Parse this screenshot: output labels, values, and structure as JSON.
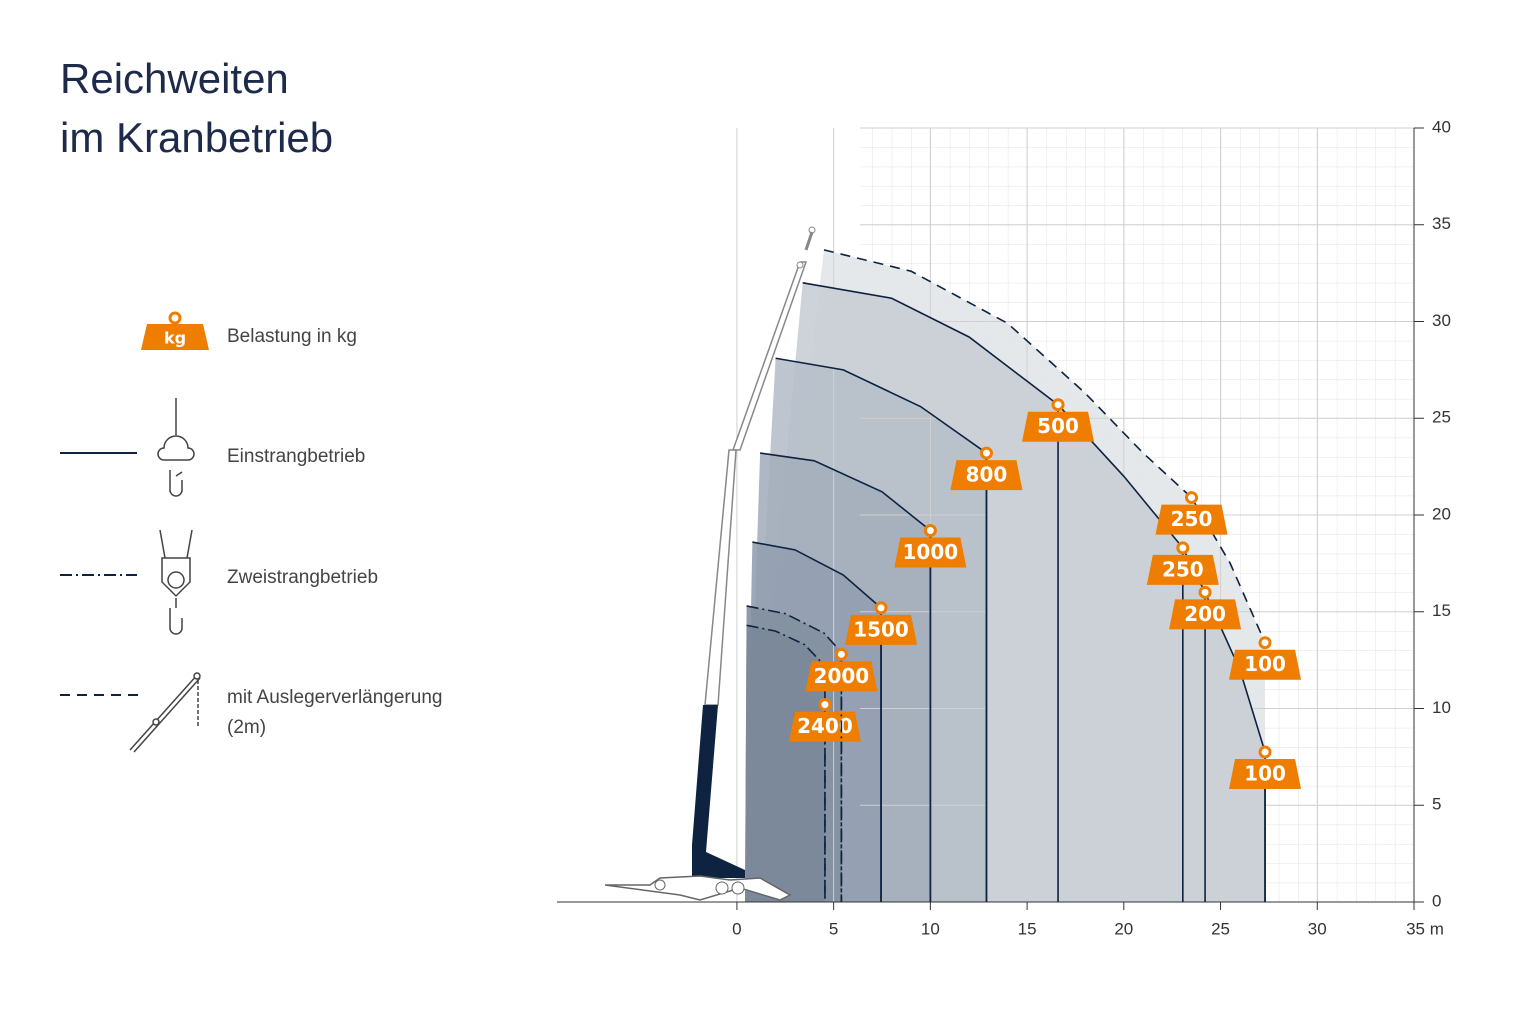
{
  "title": [
    "Reichweiten",
    "im Kranbetrieb"
  ],
  "legend": {
    "load": "Belastung in kg",
    "load_icon": "kg",
    "single": "Einstrangbetrieb",
    "double": "Zweistrangbetrieb",
    "extension": [
      "mit Auslegerverlängerung",
      "(2m)"
    ]
  },
  "chart_data": {
    "type": "load-chart",
    "xlim": [
      -9.3,
      35
    ],
    "ylim": [
      0,
      40
    ],
    "xticks": [
      0,
      5,
      10,
      15,
      20,
      25,
      30,
      {
        "value": 35,
        "label": "35 m"
      }
    ],
    "yticks": [
      0,
      5,
      10,
      15,
      20,
      25,
      30,
      35,
      40
    ],
    "grid": true,
    "curves": [
      {
        "style": "dashed",
        "color": "#0d2340",
        "fill": "#e2e5e9",
        "x": [
          4.5,
          9,
          14,
          18,
          21,
          23.5,
          25.5,
          27.3
        ],
        "y": [
          33.7,
          32.6,
          29.9,
          26.3,
          23.2,
          20.9,
          17.5,
          13.4
        ]
      },
      {
        "style": "solid",
        "color": "#0d2340",
        "fill": "#c9ced6",
        "x": [
          3.4,
          8,
          12,
          16.6,
          20,
          23.05,
          24.2,
          26,
          27.3
        ],
        "y": [
          32.0,
          31.2,
          29.2,
          25.7,
          22.0,
          18.3,
          16.0,
          12,
          7.75
        ]
      },
      {
        "style": "solid",
        "color": "#0d2340",
        "fill": "#b7bfca",
        "x": [
          2,
          5.5,
          9.5,
          12.9
        ],
        "y": [
          28.1,
          27.5,
          25.6,
          23.2
        ]
      },
      {
        "style": "solid",
        "color": "#0d2340",
        "fill": "#a5afbc",
        "x": [
          1.2,
          4,
          7.5,
          10
        ],
        "y": [
          23.2,
          22.8,
          21.2,
          19.2
        ]
      },
      {
        "style": "solid",
        "color": "#0d2340",
        "fill": "#93a0b0",
        "x": [
          0.8,
          3,
          5.5,
          7.45
        ],
        "y": [
          18.6,
          18.2,
          16.9,
          15.2
        ]
      },
      {
        "style": "dashdot",
        "color": "#0d2340",
        "fill": "#82909f",
        "x": [
          0.5,
          2.5,
          4.5,
          5.4
        ],
        "y": [
          15.3,
          14.9,
          13.9,
          12.9
        ]
      },
      {
        "style": "dashdot",
        "color": "#0d2340",
        "fill": "#7b889a",
        "x": [
          0.5,
          2,
          3.5,
          4.55
        ],
        "y": [
          14.3,
          14.0,
          13.3,
          12.2
        ]
      }
    ],
    "loads": [
      {
        "value": 2400,
        "x": 4.55,
        "y": 10.2,
        "style": "dashdot"
      },
      {
        "value": 2000,
        "x": 5.4,
        "y": 12.8,
        "style": "dashdot"
      },
      {
        "value": 1500,
        "x": 7.45,
        "y": 15.2,
        "style": "solid"
      },
      {
        "value": 1000,
        "x": 10,
        "y": 19.2,
        "style": "solid"
      },
      {
        "value": 800,
        "x": 12.9,
        "y": 23.2,
        "style": "solid"
      },
      {
        "value": 500,
        "x": 16.6,
        "y": 25.7,
        "style": "solid"
      },
      {
        "value": 250,
        "x": 23.5,
        "y": 20.9,
        "style": "dashed"
      },
      {
        "value": 250,
        "x": 23.05,
        "y": 18.3,
        "style": "solid"
      },
      {
        "value": 200,
        "x": 24.2,
        "y": 16.0,
        "style": "solid"
      },
      {
        "value": 100,
        "x": 27.3,
        "y": 13.4,
        "style": "dashed"
      },
      {
        "value": 100,
        "x": 27.3,
        "y": 7.75,
        "style": "solid"
      }
    ],
    "load_color": "#ee7d00"
  }
}
